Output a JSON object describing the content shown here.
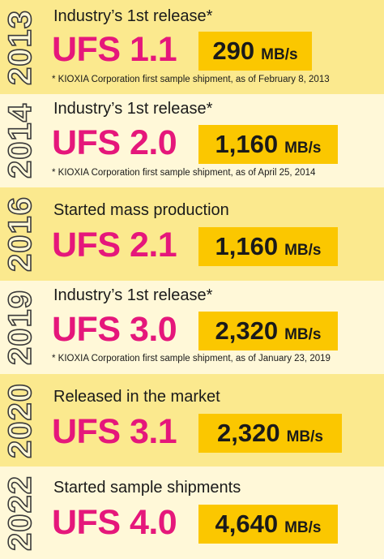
{
  "colors": {
    "row_light": "#fff8d8",
    "row_dark": "#fbe98e",
    "product": "#e5177b",
    "speed_box": "#fbc700"
  },
  "releases": [
    {
      "year": "2013",
      "headline": "Industry’s 1st release*",
      "product": "UFS 1.1",
      "speed": "290",
      "unit": "MB/s",
      "note": "* KIOXIA Corporation first sample shipment, as of February 8, 2013"
    },
    {
      "year": "2014",
      "headline": "Industry’s 1st release*",
      "product": "UFS 2.0",
      "speed": "1,160",
      "unit": "MB/s",
      "note": "* KIOXIA Corporation first sample shipment, as of April 25, 2014"
    },
    {
      "year": "2016",
      "headline": "Started mass production",
      "product": "UFS 2.1",
      "speed": "1,160",
      "unit": "MB/s",
      "note": ""
    },
    {
      "year": "2019",
      "headline": "Industry’s 1st release*",
      "product": "UFS 3.0",
      "speed": "2,320",
      "unit": "MB/s",
      "note": "* KIOXIA Corporation first sample shipment, as of January 23, 2019"
    },
    {
      "year": "2020",
      "headline": "Released in the market",
      "product": "UFS 3.1",
      "speed": "2,320",
      "unit": "MB/s",
      "note": ""
    },
    {
      "year": "2022",
      "headline": "Started sample shipments",
      "product": "UFS 4.0",
      "speed": "4,640",
      "unit": "MB/s",
      "note": ""
    }
  ]
}
